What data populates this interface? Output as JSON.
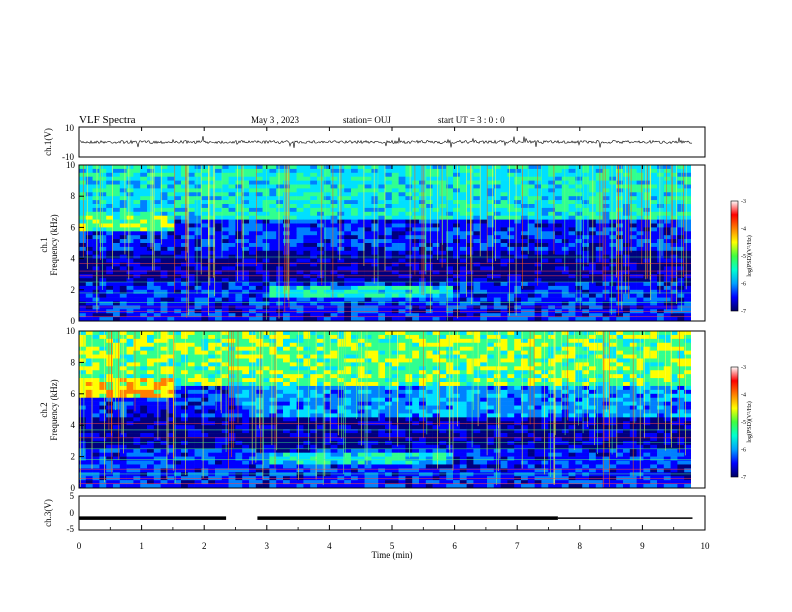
{
  "header": {
    "title": "VLF Spectra",
    "date": "May 3 , 2023",
    "station": "station= OUJ",
    "start": "start UT = 3 : 0 : 0"
  },
  "chart_data": [
    {
      "type": "line",
      "title": "",
      "ylabel": "ch.1(V)",
      "xlim": [
        0,
        10
      ],
      "ylim": [
        -10,
        10
      ],
      "yticks": [
        "10",
        "-10"
      ],
      "description_values": {
        "baseline": 0
      }
    },
    {
      "type": "heatmap",
      "ylabel_top": "ch.1",
      "ylabel": "Frequency (kHz)",
      "xlim": [
        0,
        10
      ],
      "ylim": [
        0,
        10
      ],
      "yticks": [
        "0",
        "2",
        "4",
        "6",
        "8",
        "10"
      ],
      "colorbar": {
        "label": "log(PSD)(V²/Hz)",
        "range": [
          -7,
          -3
        ],
        "ticks": [
          "-3",
          "-4",
          "-5",
          "-6",
          "-7"
        ]
      }
    },
    {
      "type": "heatmap",
      "ylabel_top": "ch.2",
      "ylabel": "Frequency (kHz)",
      "xlim": [
        0,
        10
      ],
      "ylim": [
        0,
        10
      ],
      "yticks": [
        "0",
        "2",
        "4",
        "6",
        "8",
        "10"
      ],
      "colorbar": {
        "label": "log(PSD)(V²/Hz)",
        "range": [
          -7,
          -3
        ],
        "ticks": [
          "-3",
          "-4",
          "-5",
          "-6",
          "-7"
        ]
      }
    },
    {
      "type": "line",
      "ylabel": "ch.3(V)",
      "xlim": [
        0,
        10
      ],
      "ylim": [
        -5,
        5
      ],
      "yticks": [
        "5",
        "0",
        "-5"
      ],
      "xlabel": "Time (min)",
      "xticks": [
        "0",
        "1",
        "2",
        "3",
        "4",
        "5",
        "6",
        "7",
        "8",
        "9",
        "10"
      ],
      "segments": [
        {
          "x": [
            0,
            2.35
          ],
          "y": -1.5
        },
        {
          "x": [
            2.85,
            7.65
          ],
          "y": -1.5
        },
        {
          "x": [
            7.65,
            9.8
          ],
          "y": -1.5
        }
      ]
    }
  ],
  "colors": {
    "colormap": [
      "#00007f",
      "#0000ff",
      "#0080ff",
      "#00e0ff",
      "#30ff90",
      "#ffff00",
      "#ff8000",
      "#ff0000",
      "#ffffff"
    ]
  }
}
